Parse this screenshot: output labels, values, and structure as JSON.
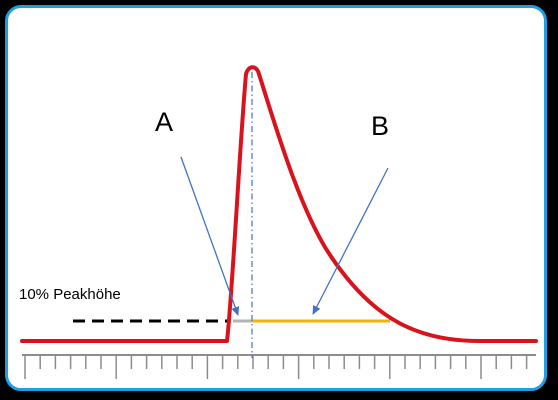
{
  "labels": {
    "a": "A",
    "b": "B",
    "threshold": "10% Peakhöhe"
  },
  "colors": {
    "frame_border": "#1e9fe3",
    "curve": "#d9131b",
    "arrow": "#4472c4",
    "b_segment": "#f5b300",
    "a_segment": "#b4b4b4",
    "center_line": "#4472c4",
    "baseline_dash": "#000000",
    "axis": "#8c8c8c"
  }
}
